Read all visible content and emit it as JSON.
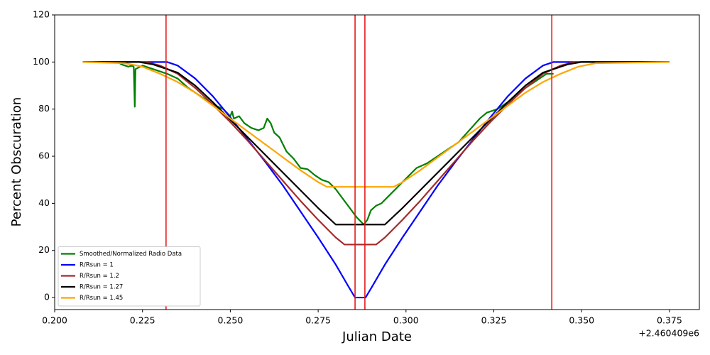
{
  "chart_data": {
    "type": "line",
    "xlabel": "Julian Date",
    "ylabel": "Percent Obscuration",
    "x_offset_label": "+2.460409e6",
    "xlim": [
      0.2,
      0.3835
    ],
    "ylim": [
      -5.1,
      120
    ],
    "xticks": [
      {
        "value": 0.2,
        "label": "0.200"
      },
      {
        "value": 0.225,
        "label": "0.225"
      },
      {
        "value": 0.25,
        "label": "0.250"
      },
      {
        "value": 0.275,
        "label": "0.275"
      },
      {
        "value": 0.3,
        "label": "0.300"
      },
      {
        "value": 0.325,
        "label": "0.325"
      },
      {
        "value": 0.35,
        "label": "0.350"
      },
      {
        "value": 0.375,
        "label": "0.375"
      }
    ],
    "yticks": [
      0,
      20,
      40,
      60,
      80,
      100,
      120
    ],
    "legend": "lower left",
    "vlines": {
      "color": "#e41a1c",
      "x": [
        0.2317,
        0.2855,
        0.2883,
        0.3415
      ]
    },
    "series": [
      {
        "name": "Smoothed/Normalized Radio Data",
        "color": "#008000",
        "x": [
          0.218,
          0.219,
          0.22,
          0.221,
          0.222,
          0.2225,
          0.2228,
          0.223,
          0.225,
          0.228,
          0.232,
          0.235,
          0.238,
          0.242,
          0.245,
          0.248,
          0.25,
          0.2505,
          0.251,
          0.2525,
          0.254,
          0.256,
          0.258,
          0.2595,
          0.2605,
          0.2615,
          0.2625,
          0.264,
          0.265,
          0.266,
          0.268,
          0.27,
          0.272,
          0.274,
          0.276,
          0.278,
          0.28,
          0.282,
          0.284,
          0.286,
          0.288,
          0.289,
          0.29,
          0.2915,
          0.293,
          0.295,
          0.297,
          0.299,
          0.301,
          0.303,
          0.306,
          0.309,
          0.312,
          0.315,
          0.318,
          0.321,
          0.323,
          0.326,
          0.33,
          0.334,
          0.338,
          0.34,
          0.342
        ],
        "values": [
          100,
          99,
          98.5,
          98,
          98.5,
          98,
          81,
          97,
          98.5,
          97,
          95,
          93,
          89,
          85,
          82,
          80,
          77,
          79,
          76,
          77,
          74,
          72,
          71,
          72,
          76,
          74,
          70,
          68,
          65,
          62,
          59,
          55,
          54.5,
          52,
          50,
          49,
          46,
          42,
          38,
          34,
          31,
          33,
          37,
          39,
          40,
          43,
          46,
          49,
          52,
          55,
          57,
          60,
          63,
          66,
          71,
          76,
          78.5,
          80,
          84,
          89,
          93,
          95,
          95
        ]
      },
      {
        "name": "R/Rsun = 1",
        "color": "#0000ff",
        "x": [
          0.208,
          0.232,
          0.235,
          0.24,
          0.245,
          0.25,
          0.255,
          0.26,
          0.265,
          0.27,
          0.275,
          0.28,
          0.2835,
          0.2855,
          0.2885,
          0.2905,
          0.294,
          0.299,
          0.304,
          0.309,
          0.314,
          0.319,
          0.324,
          0.329,
          0.334,
          0.339,
          0.342,
          0.375
        ],
        "values": [
          100,
          100,
          98.5,
          93,
          85.5,
          76.5,
          67,
          57.5,
          47.5,
          36.5,
          25.5,
          14,
          5,
          0,
          0,
          5,
          14,
          25.5,
          36.5,
          47.5,
          57.5,
          67,
          76.5,
          85.5,
          93,
          98.5,
          100,
          100
        ]
      },
      {
        "name": "R/Rsun = 1.2",
        "color": "#a52a2a",
        "x": [
          0.208,
          0.226,
          0.23,
          0.235,
          0.24,
          0.245,
          0.25,
          0.255,
          0.26,
          0.265,
          0.27,
          0.275,
          0.28,
          0.2825,
          0.2915,
          0.294,
          0.299,
          0.304,
          0.309,
          0.314,
          0.319,
          0.324,
          0.329,
          0.334,
          0.339,
          0.344,
          0.348,
          0.375
        ],
        "values": [
          100,
          100,
          98.5,
          95,
          89,
          82,
          74.5,
          66.5,
          58,
          49.5,
          41,
          33,
          25.5,
          22.5,
          22.5,
          25.5,
          33,
          41,
          49.5,
          58,
          66.5,
          74.5,
          82,
          89,
          95,
          98.5,
          100,
          100
        ]
      },
      {
        "name": "R/Rsun = 1.27",
        "color": "#000000",
        "x": [
          0.208,
          0.224,
          0.228,
          0.235,
          0.24,
          0.245,
          0.25,
          0.255,
          0.26,
          0.265,
          0.27,
          0.275,
          0.28,
          0.294,
          0.299,
          0.304,
          0.309,
          0.314,
          0.319,
          0.324,
          0.329,
          0.334,
          0.339,
          0.346,
          0.35,
          0.375
        ],
        "values": [
          100,
          100,
          99,
          95.5,
          90,
          83,
          75.5,
          68,
          60.5,
          53,
          45.5,
          38,
          31,
          31,
          38,
          45.5,
          53,
          60.5,
          68,
          75.5,
          83,
          90,
          95.5,
          99,
          100,
          100
        ]
      },
      {
        "name": "R/Rsun = 1.45",
        "color": "#ffa500",
        "x": [
          0.208,
          0.22,
          0.225,
          0.23,
          0.235,
          0.24,
          0.245,
          0.25,
          0.255,
          0.26,
          0.265,
          0.27,
          0.275,
          0.2775,
          0.2965,
          0.299,
          0.304,
          0.309,
          0.314,
          0.319,
          0.324,
          0.329,
          0.334,
          0.339,
          0.344,
          0.349,
          0.354,
          0.375
        ],
        "values": [
          100,
          99.5,
          98,
          95,
          91.5,
          87,
          81.5,
          76,
          70.5,
          65,
          59.5,
          54,
          49,
          47,
          47,
          49,
          54,
          59.5,
          65,
          70.5,
          76,
          81.5,
          87,
          91.5,
          95,
          98,
          99.5,
          100
        ]
      }
    ]
  }
}
